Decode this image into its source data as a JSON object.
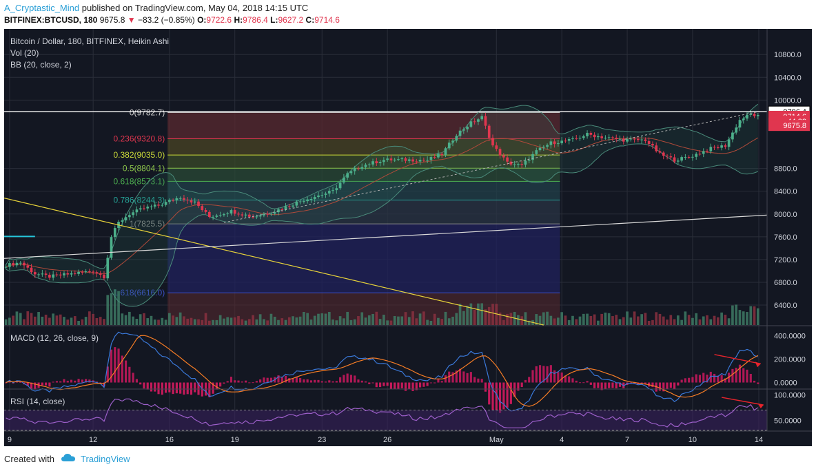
{
  "header": {
    "author": "A_Cryptastic_Mind",
    "published_text": "published on TradingView.com, May 04, 2018 14:15 UTC",
    "symbol": "BITFINEX:BTCUSD, 180",
    "last": "9675.8",
    "change": "−83.2 (−0.85%)",
    "o_label": "O:",
    "o_val": "9722.6",
    "h_label": "H:",
    "h_val": "9786.4",
    "l_label": "L:",
    "l_val": "9627.2",
    "c_label": "C:",
    "c_val": "9714.6"
  },
  "legend": {
    "title": "Bitcoin / Dollar, 180, BITFINEX, Heikin Ashi",
    "vol": "Vol (20)",
    "bb": "BB (20, close, 2)",
    "macd": "MACD (12, 26, close, 9)",
    "rsi": "RSI (14, close)"
  },
  "footer": {
    "created": "Created with",
    "brand": "TradingView"
  },
  "colors": {
    "background": "#131722",
    "up": "#4caf8a",
    "down": "#e0364f",
    "grid": "#2a2e39",
    "trendline_yellow": "#e6d23a",
    "trendline_white": "#d8d8d8",
    "macd_line": "#3a78d8",
    "signal_line": "#f57c25",
    "rsi_line": "#9c5fc9",
    "arrow": "#e8242c"
  },
  "chart_data": [
    {
      "type": "candlestick",
      "title": "Bitcoin / Dollar, 180, BITFINEX, Heikin Ashi",
      "x_labels": [
        "9",
        "12",
        "16",
        "19",
        "23",
        "26",
        "May",
        "4",
        "7",
        "10",
        "14"
      ],
      "y_ticks": [
        "10800.0",
        "10400.0",
        "10000.0",
        "8800.0",
        "8400.0",
        "8000.0",
        "7600.0",
        "7200.0",
        "6800.0",
        "6400.0"
      ],
      "ylim": [
        6050,
        11250
      ],
      "price_tags": [
        "9796.4",
        "9714.6",
        "44:32",
        "9675.8"
      ],
      "fib_levels": [
        {
          "label": "0(9782.7)",
          "value": 9782.7
        },
        {
          "label": "0.236(9320.8)",
          "value": 9320.8
        },
        {
          "label": "0.382(9035.0)",
          "value": 9035.0
        },
        {
          "label": "0.5(8804.1)",
          "value": 8804.1
        },
        {
          "label": "0.618(8573.1)",
          "value": 8573.1
        },
        {
          "label": "0.786(8244.3)",
          "value": 8244.3
        },
        {
          "label": "1(7825.5)",
          "value": 7825.5
        },
        {
          "label": "1.618(6616.0)",
          "value": 6616.0
        }
      ],
      "price_path": [
        {
          "x": 0,
          "y": 7100
        },
        {
          "x": 4,
          "y": 7150
        },
        {
          "x": 8,
          "y": 6950
        },
        {
          "x": 12,
          "y": 6900
        },
        {
          "x": 18,
          "y": 6950
        },
        {
          "x": 24,
          "y": 7000
        },
        {
          "x": 27,
          "y": 6900
        },
        {
          "x": 29,
          "y": 7600
        },
        {
          "x": 31,
          "y": 7850
        },
        {
          "x": 34,
          "y": 8000
        },
        {
          "x": 38,
          "y": 8100
        },
        {
          "x": 42,
          "y": 8150
        },
        {
          "x": 48,
          "y": 8300
        },
        {
          "x": 52,
          "y": 8200
        },
        {
          "x": 56,
          "y": 7950
        },
        {
          "x": 62,
          "y": 8050
        },
        {
          "x": 68,
          "y": 7950
        },
        {
          "x": 74,
          "y": 8050
        },
        {
          "x": 82,
          "y": 8250
        },
        {
          "x": 90,
          "y": 8400
        },
        {
          "x": 94,
          "y": 8700
        },
        {
          "x": 98,
          "y": 8850
        },
        {
          "x": 104,
          "y": 8950
        },
        {
          "x": 110,
          "y": 8950
        },
        {
          "x": 116,
          "y": 8950
        },
        {
          "x": 120,
          "y": 9050
        },
        {
          "x": 124,
          "y": 9400
        },
        {
          "x": 128,
          "y": 9600
        },
        {
          "x": 131,
          "y": 9700
        },
        {
          "x": 134,
          "y": 9200
        },
        {
          "x": 138,
          "y": 8900
        },
        {
          "x": 142,
          "y": 8850
        },
        {
          "x": 146,
          "y": 9100
        },
        {
          "x": 150,
          "y": 9250
        },
        {
          "x": 156,
          "y": 9300
        },
        {
          "x": 160,
          "y": 9400
        },
        {
          "x": 164,
          "y": 9350
        },
        {
          "x": 170,
          "y": 9300
        },
        {
          "x": 176,
          "y": 9300
        },
        {
          "x": 180,
          "y": 9050
        },
        {
          "x": 184,
          "y": 8950
        },
        {
          "x": 188,
          "y": 9000
        },
        {
          "x": 194,
          "y": 9150
        },
        {
          "x": 198,
          "y": 9200
        },
        {
          "x": 202,
          "y": 9650
        },
        {
          "x": 205,
          "y": 9750
        },
        {
          "x": 207,
          "y": 9715
        }
      ],
      "series": [
        {
          "name": "MACD",
          "ylim": [
            -50,
            480
          ],
          "y_ticks": [
            "400.0000",
            "200.0000",
            "0.0000"
          ]
        },
        {
          "name": "RSI",
          "ylim": [
            30,
            110
          ],
          "y_ticks": [
            "100.0000",
            "50.0000"
          ]
        }
      ]
    }
  ]
}
